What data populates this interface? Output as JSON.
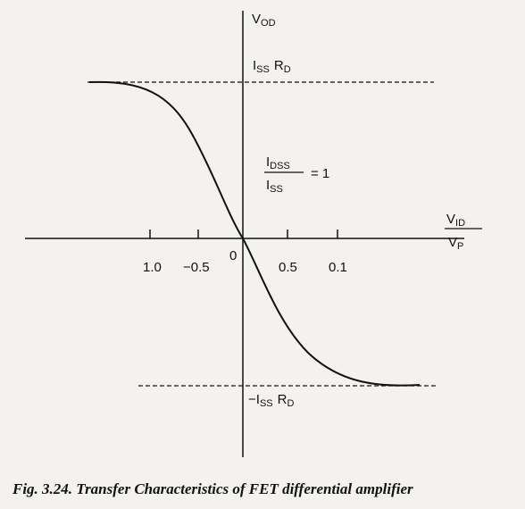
{
  "axis": {
    "y_label": {
      "main": "V",
      "sub": "OD"
    },
    "x_label": {
      "numerator": {
        "main": "V",
        "sub": "ID"
      },
      "denominator": {
        "main": "V",
        "sub": "P"
      }
    }
  },
  "annotations": {
    "upper_limit": [
      {
        "main": "I",
        "sub": "SS"
      },
      {
        "main": "R",
        "sub": "D"
      }
    ],
    "lower_limit": [
      {
        "main": "−I",
        "sub": "SS"
      },
      {
        "main": "R",
        "sub": "D"
      }
    ],
    "condition": {
      "numerator": {
        "main": "I",
        "sub": "DSS"
      },
      "denominator": {
        "main": "I",
        "sub": "SS"
      },
      "rhs": "= 1"
    }
  },
  "tick_labels": [
    "1.0",
    "−0.5",
    "0",
    "0.5",
    "0.1"
  ],
  "caption": "Fig. 3.24. Transfer Characteristics of FET differential amplifier"
}
